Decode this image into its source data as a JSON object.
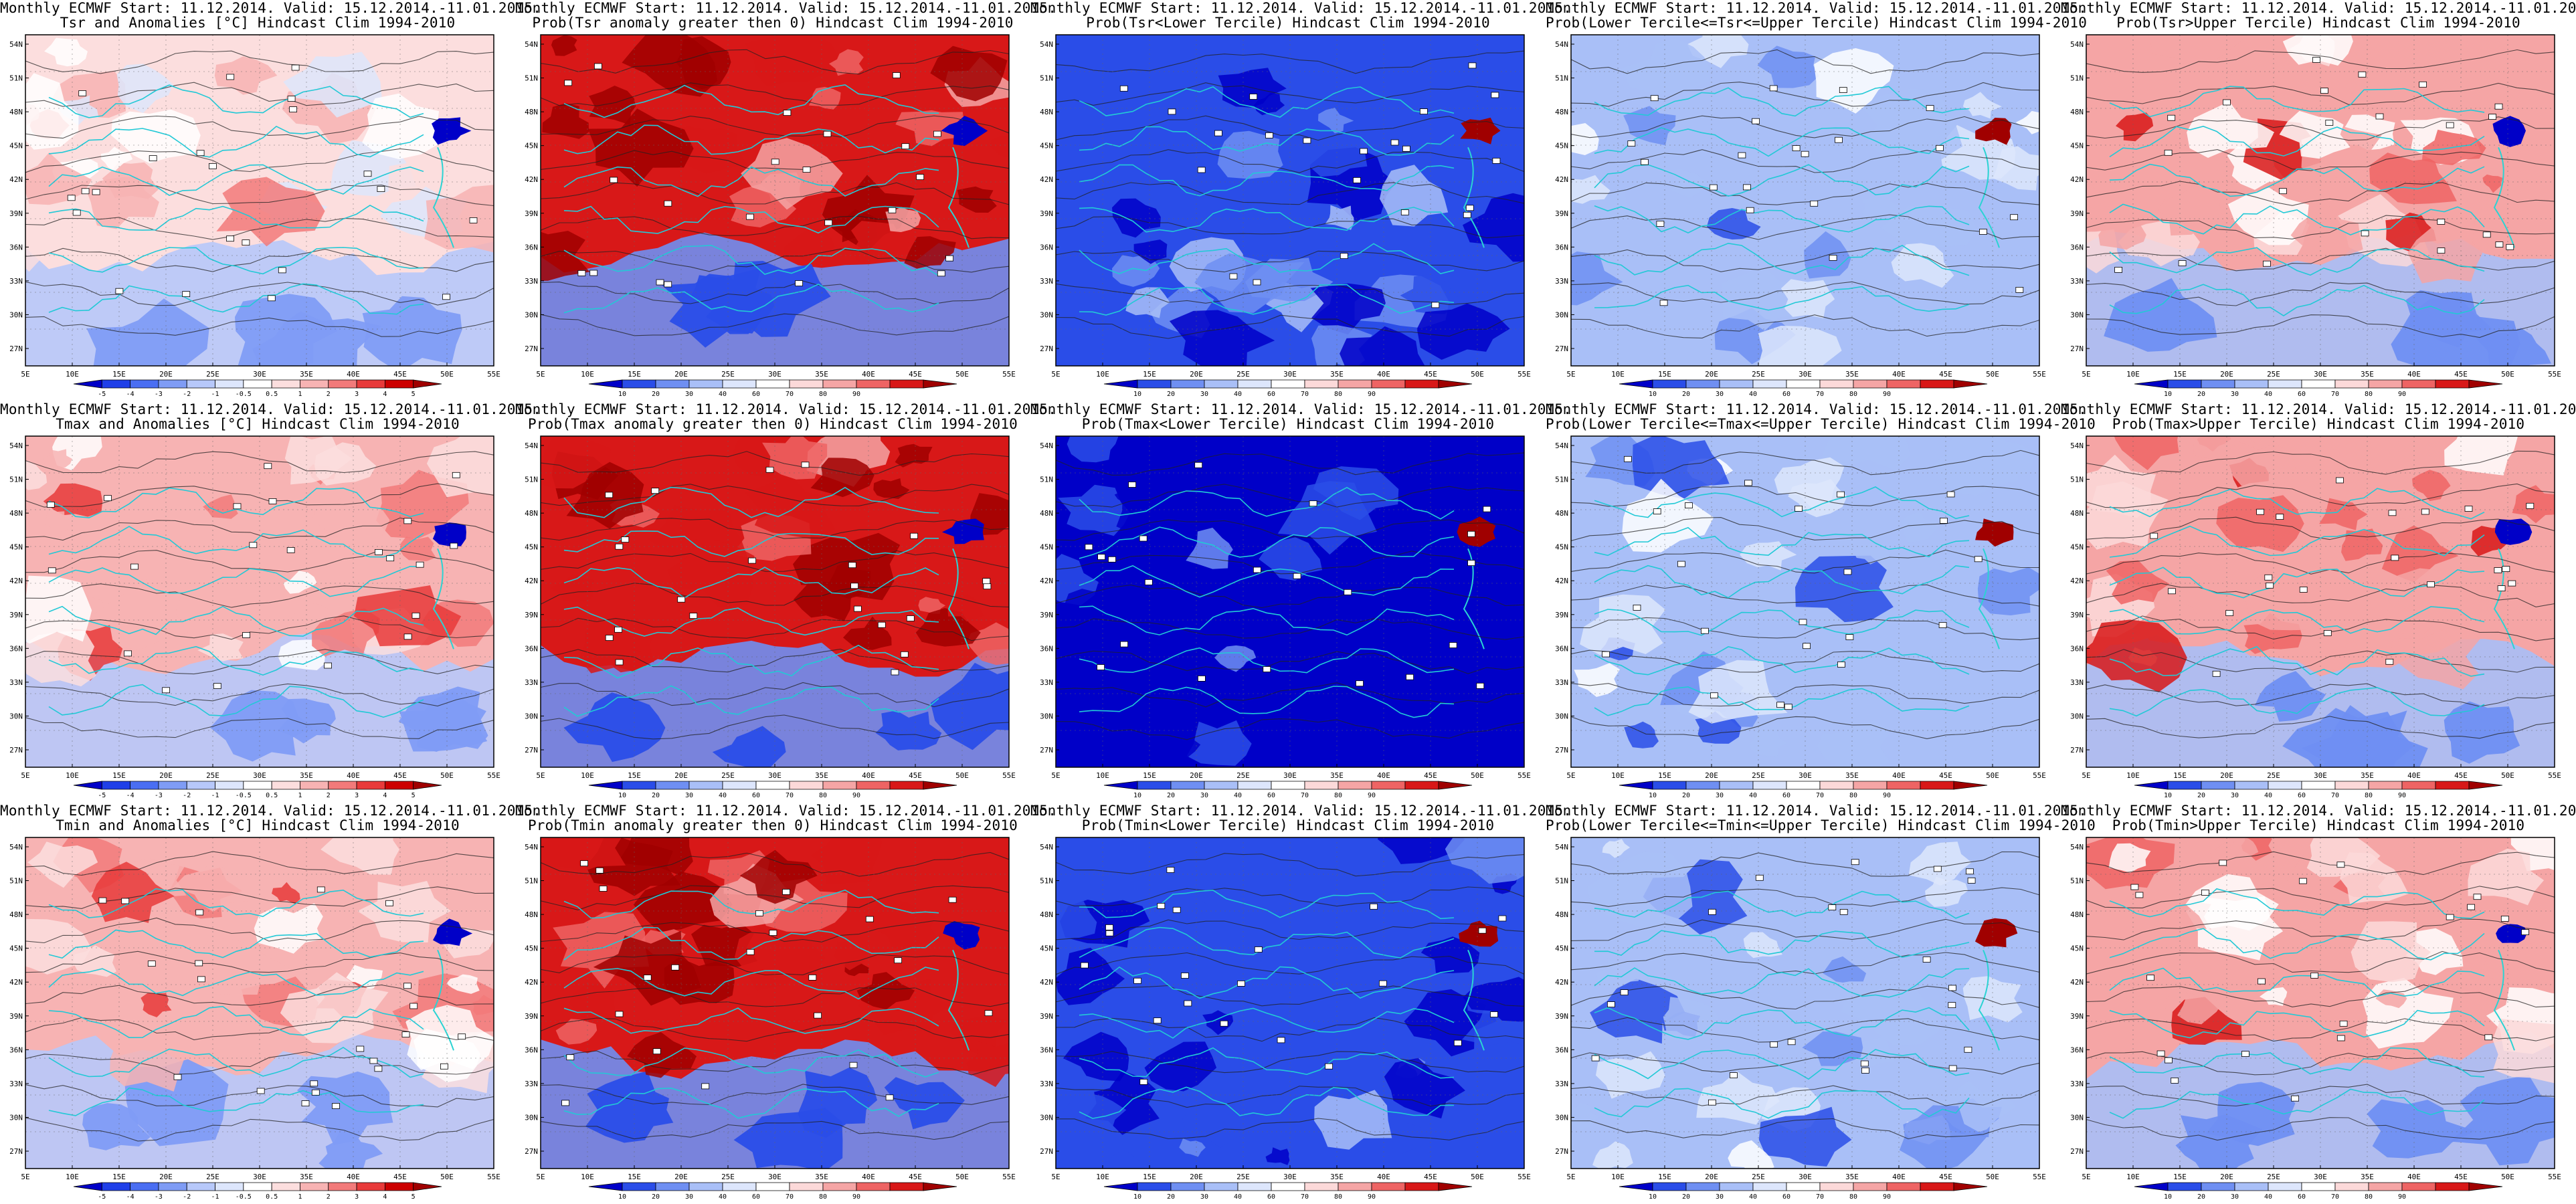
{
  "title_line1": "Monthly ECMWF Start: 11.12.2014. Valid: 15.12.2014.-11.01.2015.",
  "colorbars": {
    "anomaly": {
      "labels": [
        "-5",
        "-4",
        "-3",
        "-2",
        "-1",
        "-0.5",
        "0.5",
        "1",
        "2",
        "3",
        "4",
        "5"
      ],
      "colors": [
        "#0000c8",
        "#1f3fe8",
        "#4a6ef2",
        "#7f9cf5",
        "#b7c8fa",
        "#dde6fc",
        "#ffffff",
        "#fcdede",
        "#f7b3b3",
        "#f27a7a",
        "#e83a3a",
        "#cc0000",
        "#a00000"
      ]
    },
    "probability": {
      "labels": [
        "10",
        "20",
        "30",
        "40",
        "60",
        "70",
        "80",
        "90"
      ],
      "colors": [
        "#0000c8",
        "#2a4de8",
        "#6f8ff2",
        "#a9bff7",
        "#dde6fc",
        "#ffffff",
        "#fcd9d9",
        "#f5a5a5",
        "#ee6464",
        "#d81818",
        "#a00000"
      ]
    }
  },
  "map_axes": {
    "lat_labels": [
      "54N",
      "51N",
      "48N",
      "45N",
      "42N",
      "39N",
      "36N",
      "33N",
      "30N",
      "27N"
    ],
    "lon_labels": [
      "5E",
      "10E",
      "15E",
      "20E",
      "25E",
      "30E",
      "35E",
      "40E",
      "45E",
      "50E",
      "55E"
    ]
  },
  "panels": [
    {
      "line2": "Tsr and Anomalies [°C] Hindcast Clim 1994-2010",
      "colorbar": "anomaly",
      "fill_level": 0.62,
      "south_cool": true
    },
    {
      "line2": "Prob(Tsr anomaly greater then 0) Hindcast Clim 1994-2010",
      "colorbar": "probability",
      "fill_level": 0.85,
      "south_cool": true
    },
    {
      "line2": "Prob(Tsr<Lower Tercile) Hindcast Clim 1994-2010",
      "colorbar": "probability",
      "fill_level": 0.05,
      "south_cool": false
    },
    {
      "line2": "Prob(Lower Tercile<=Tsr<=Upper Tercile) Hindcast Clim 1994-2010",
      "colorbar": "probability",
      "fill_level": 0.28,
      "south_cool": false
    },
    {
      "line2": "Prob(Tsr>Upper Tercile) Hindcast Clim 1994-2010",
      "colorbar": "probability",
      "fill_level": 0.7,
      "south_cool": true
    },
    {
      "line2": "Tmax and Anomalies [°C] Hindcast Clim 1994-2010",
      "colorbar": "anomaly",
      "fill_level": 0.64,
      "south_cool": true
    },
    {
      "line2": "Prob(Tmax anomaly greater then 0) Hindcast Clim 1994-2010",
      "colorbar": "probability",
      "fill_level": 0.86,
      "south_cool": true
    },
    {
      "line2": "Prob(Tmax<Lower Tercile) Hindcast Clim 1994-2010",
      "colorbar": "probability",
      "fill_level": 0.04,
      "south_cool": false
    },
    {
      "line2": "Prob(Lower Tercile<=Tmax<=Upper Tercile) Hindcast Clim 1994-2010",
      "colorbar": "probability",
      "fill_level": 0.27,
      "south_cool": false
    },
    {
      "line2": "Prob(Tmax>Upper Tercile) Hindcast Clim 1994-2010",
      "colorbar": "probability",
      "fill_level": 0.72,
      "south_cool": true
    },
    {
      "line2": "Tmin and Anomalies [°C] Hindcast Clim 1994-2010",
      "colorbar": "anomaly",
      "fill_level": 0.64,
      "south_cool": true
    },
    {
      "line2": "Prob(Tmin anomaly greater then 0) Hindcast Clim 1994-2010",
      "colorbar": "probability",
      "fill_level": 0.88,
      "south_cool": true
    },
    {
      "line2": "Prob(Tmin<Lower Tercile) Hindcast Clim 1994-2010",
      "colorbar": "probability",
      "fill_level": 0.06,
      "south_cool": false
    },
    {
      "line2": "Prob(Lower Tercile<=Tmin<=Upper Tercile) Hindcast Clim 1994-2010",
      "colorbar": "probability",
      "fill_level": 0.26,
      "south_cool": false
    },
    {
      "line2": "Prob(Tmin>Upper Tercile) Hindcast Clim 1994-2010",
      "colorbar": "probability",
      "fill_level": 0.68,
      "south_cool": true
    }
  ]
}
